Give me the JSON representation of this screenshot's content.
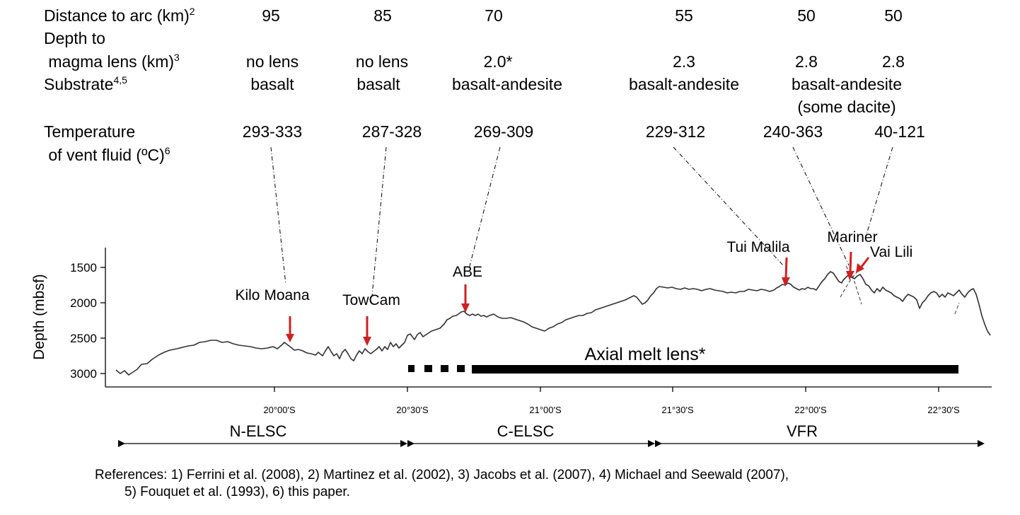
{
  "table": {
    "rows": [
      {
        "id": "distance",
        "label": [
          "Distance to arc (km)"
        ],
        "sup": "2",
        "values": [
          "95",
          "85",
          "70",
          "55",
          "50",
          "50"
        ]
      },
      {
        "id": "depth",
        "label": [
          "Depth to",
          " magma lens (km)"
        ],
        "sup": "3",
        "values": [
          "no lens",
          "no lens",
          "2.0*",
          "2.3",
          "2.8",
          "2.8"
        ]
      },
      {
        "id": "substrate",
        "label": [
          "Substrate"
        ],
        "sup": "4,5",
        "values": [
          "basalt",
          "basalt",
          "basalt-andesite",
          "basalt-andesite",
          "basalt-andesite",
          ""
        ],
        "extra": "(some dacite)"
      },
      {
        "id": "temperature",
        "label": [
          "Temperature",
          " of vent fluid (ºC)"
        ],
        "sup": "6",
        "values": [
          "293-333",
          "287-328",
          "269-309",
          "229-312",
          "240-363",
          "40-121"
        ]
      }
    ]
  },
  "sites": [
    {
      "name": "Kilo Moana",
      "temp": "293-333"
    },
    {
      "name": "TowCam",
      "temp": "287-328"
    },
    {
      "name": "ABE",
      "temp": "269-309"
    },
    {
      "name": "Tui Malila",
      "temp": "229-312"
    },
    {
      "name": "Mariner",
      "temp": "240-363"
    },
    {
      "name": "Vai Lili",
      "temp": "40-121"
    }
  ],
  "profile": {
    "ylabel": "Depth (mbsf)",
    "y_ticks": [
      "1500",
      "2000",
      "2500",
      "3000"
    ],
    "x_ticks": [
      "20°00'S",
      "20°30'S",
      "21°00'S",
      "21°30'S",
      "22°00'S",
      "22°30'S"
    ],
    "axial_label": "Axial melt lens*"
  },
  "segments": [
    "N-ELSC",
    "C-ELSC",
    "VFR"
  ],
  "references": {
    "line1": "References: 1) Ferrini et al. (2008), 2) Martinez et al. (2002), 3) Jacobs et al. (2007), 4) Michael and Seewald (2007),",
    "line2": "5) Fouquet et al. (1993), 6) this paper."
  },
  "colors": {
    "arrow": "#cc2222",
    "line": "#000000"
  }
}
